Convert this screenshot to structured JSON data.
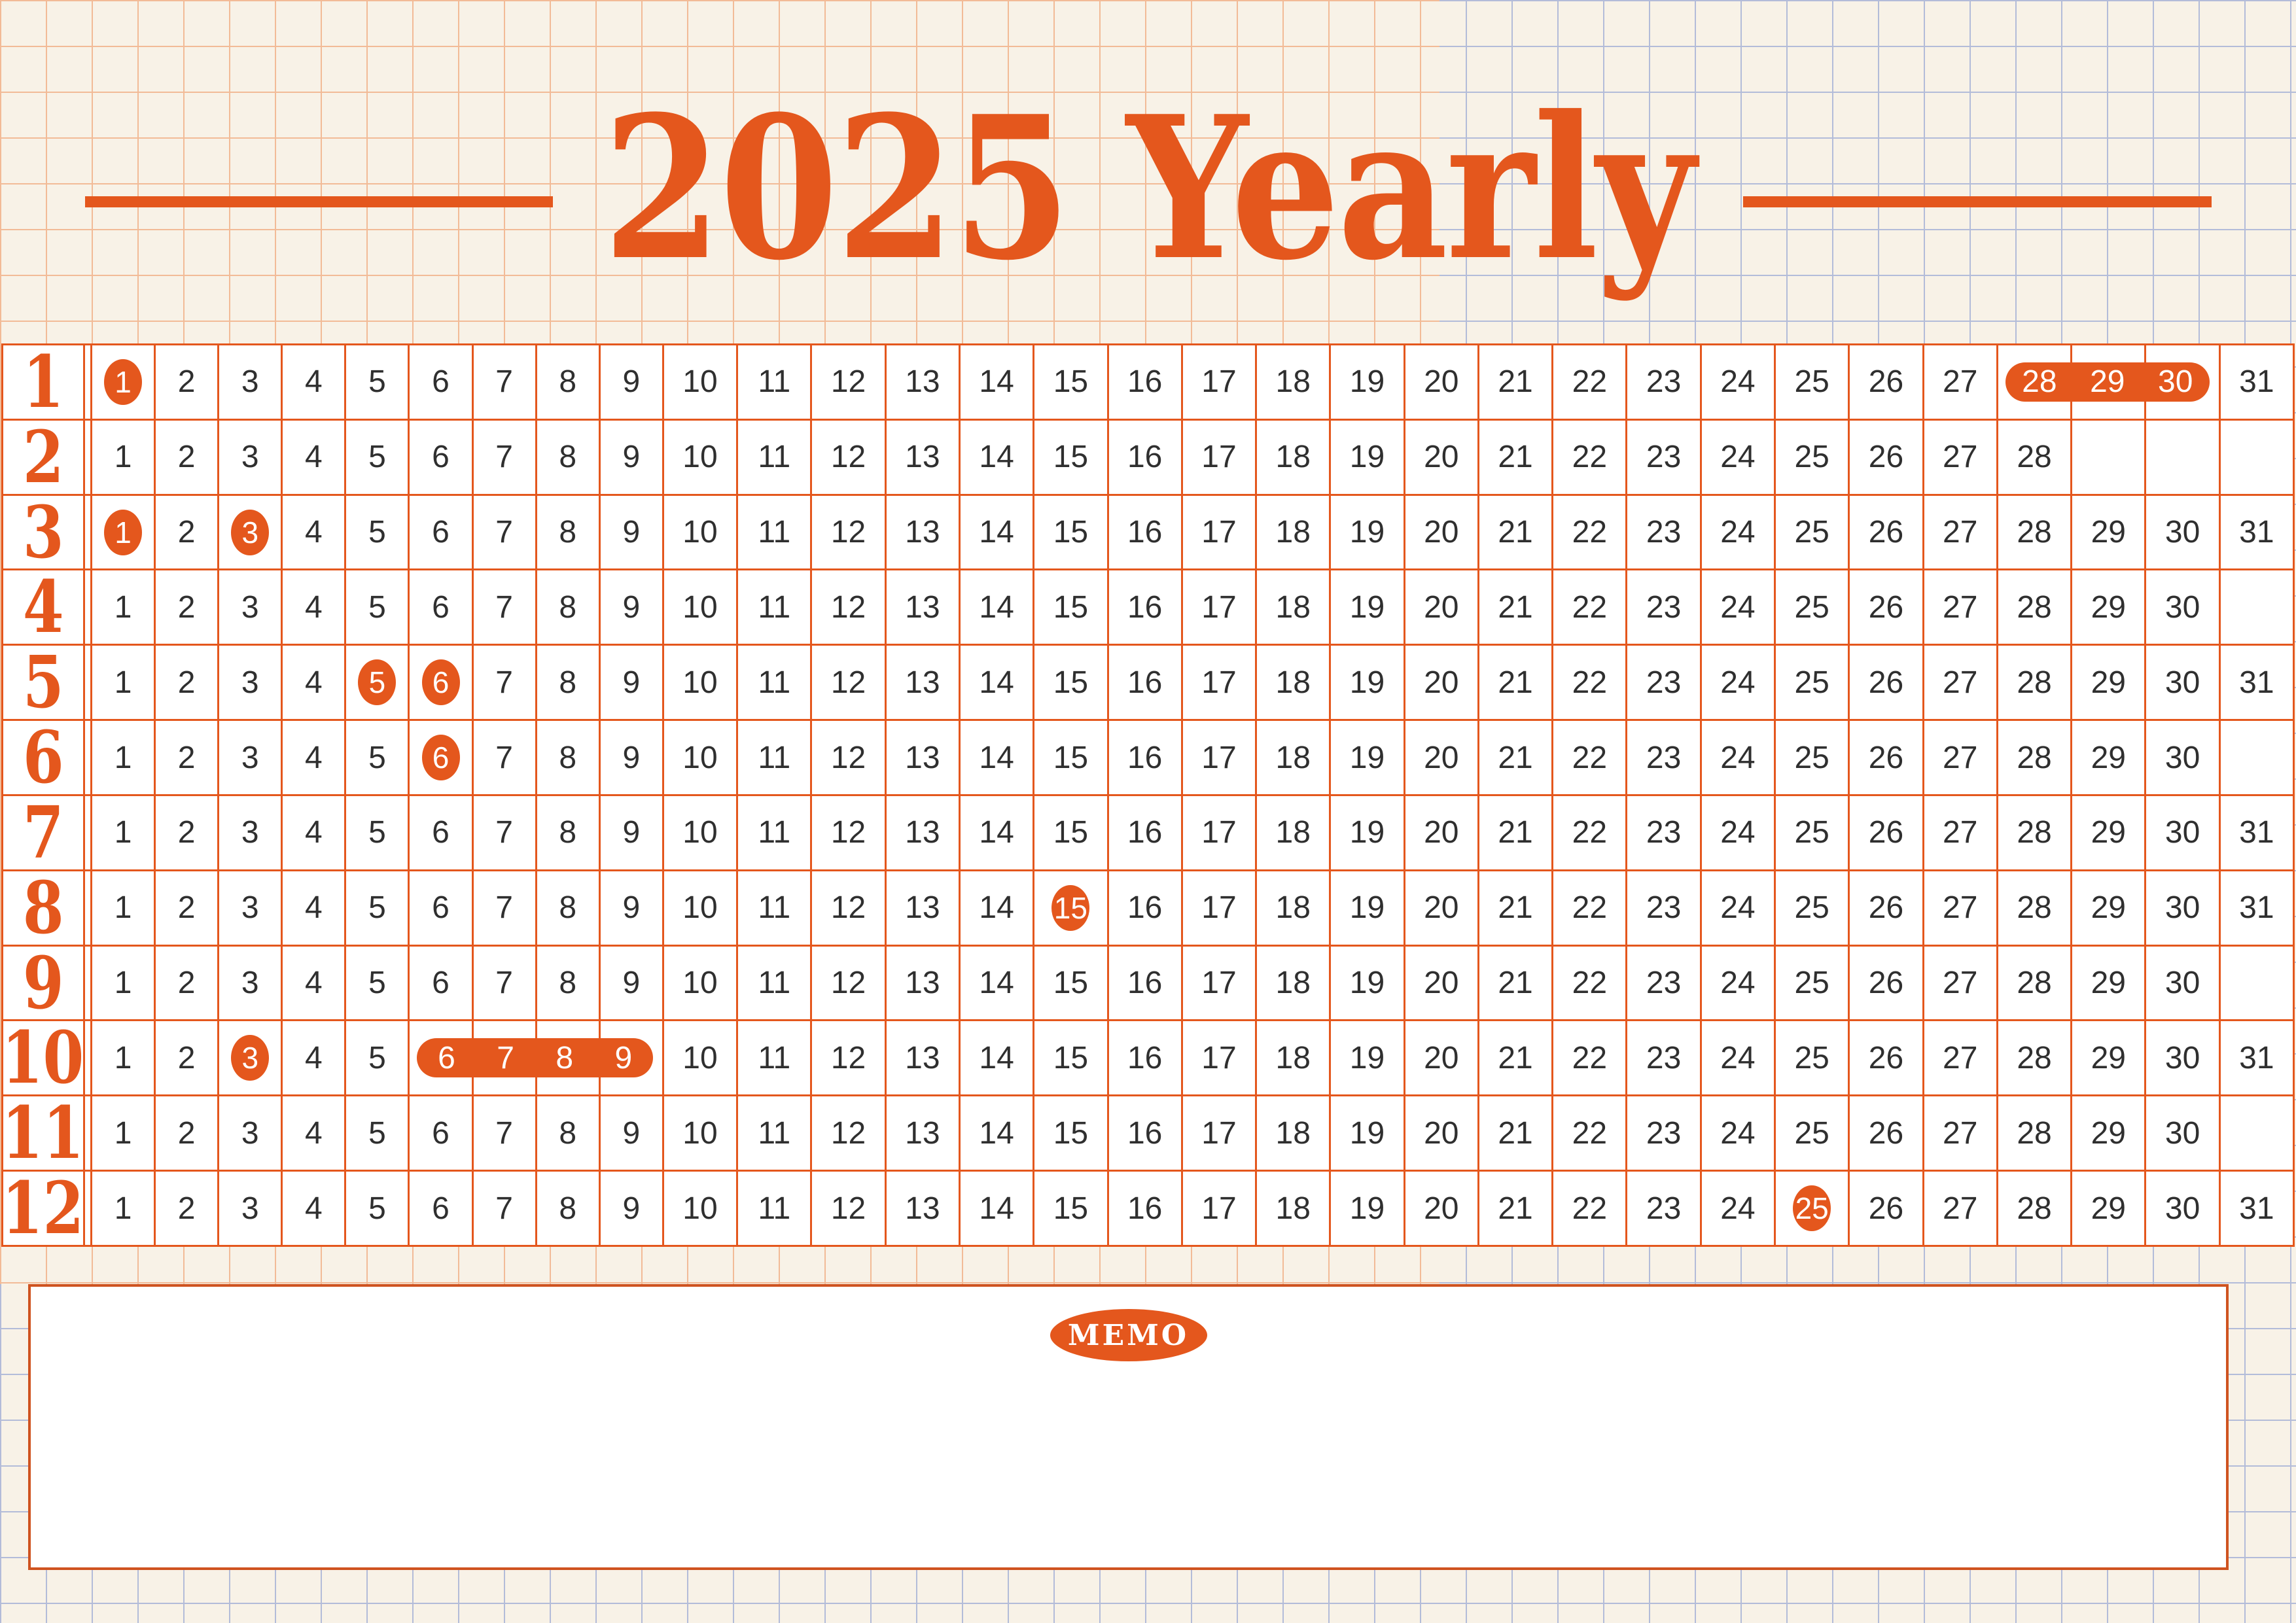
{
  "title": "2025 Yearly",
  "memo": {
    "label": "MEMO"
  },
  "calendar": {
    "max_days": 31,
    "months": [
      {
        "label": "1",
        "days": 31,
        "circled": [
          1
        ],
        "ranges": [
          [
            28,
            30
          ]
        ]
      },
      {
        "label": "2",
        "days": 28,
        "circled": [],
        "ranges": []
      },
      {
        "label": "3",
        "days": 31,
        "circled": [
          1,
          3
        ],
        "ranges": []
      },
      {
        "label": "4",
        "days": 30,
        "circled": [],
        "ranges": []
      },
      {
        "label": "5",
        "days": 31,
        "circled": [
          5,
          6
        ],
        "ranges": []
      },
      {
        "label": "6",
        "days": 30,
        "circled": [
          6
        ],
        "ranges": []
      },
      {
        "label": "7",
        "days": 31,
        "circled": [],
        "ranges": []
      },
      {
        "label": "8",
        "days": 31,
        "circled": [
          15
        ],
        "ranges": []
      },
      {
        "label": "9",
        "days": 30,
        "circled": [],
        "ranges": []
      },
      {
        "label": "10",
        "days": 31,
        "circled": [
          3
        ],
        "ranges": [
          [
            6,
            9
          ]
        ]
      },
      {
        "label": "11",
        "days": 30,
        "circled": [],
        "ranges": []
      },
      {
        "label": "12",
        "days": 31,
        "circled": [
          25
        ],
        "ranges": []
      }
    ]
  },
  "colors": {
    "accent": "#e4571d",
    "memo_border": "#cf5320",
    "grid_orange": "#f2bb97",
    "grid_blue": "#b3bcd9",
    "paper": "#f8f2e7",
    "day_text": "#2f2f2f"
  }
}
